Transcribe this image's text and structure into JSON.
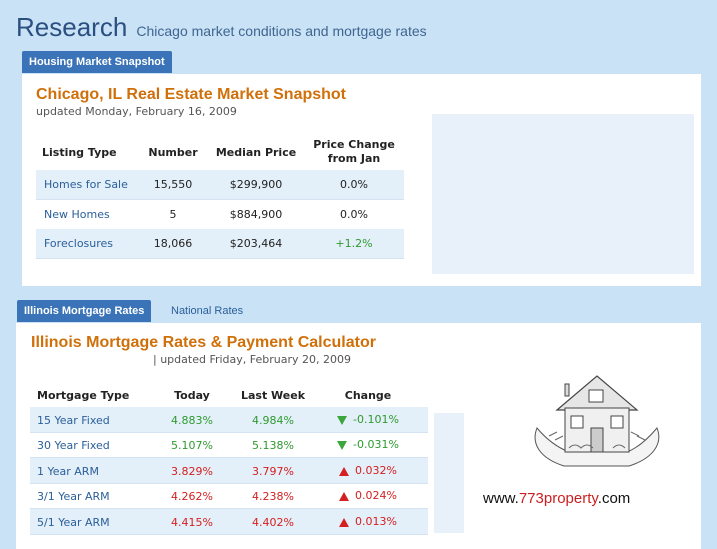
{
  "header": {
    "title": "Research",
    "subtitle": "Chicago market conditions and mortgage rates"
  },
  "snapshot": {
    "tab_label": "Housing Market Snapshot",
    "title": "Chicago, IL Real Estate Market Snapshot",
    "updated": "updated Monday, February 16, 2009",
    "columns": [
      "Listing Type",
      "Number",
      "Median Price",
      "Price Change\nfrom Jan"
    ],
    "rows": [
      {
        "type": "Homes for Sale",
        "number": "15,550",
        "median": "$299,900",
        "change": "0.0%"
      },
      {
        "type": "New Homes",
        "number": "5",
        "median": "$884,900",
        "change": "0.0%"
      },
      {
        "type": "Foreclosures",
        "number": "18,066",
        "median": "$203,464",
        "change": "+1.2%"
      }
    ]
  },
  "rates": {
    "tabs": [
      "Illinois Mortgage Rates",
      "National Rates"
    ],
    "title": "Illinois Mortgage Rates & Payment Calculator",
    "updated": "| updated Friday, February 20, 2009",
    "columns": [
      "Mortgage Type",
      "Today",
      "Last Week",
      "Change"
    ],
    "rows": [
      {
        "type": "15 Year Fixed",
        "today": "4.883%",
        "last_week": "4.984%",
        "change": "-0.101%",
        "direction": "down"
      },
      {
        "type": "30 Year Fixed",
        "today": "5.107%",
        "last_week": "5.138%",
        "change": "-0.031%",
        "direction": "down"
      },
      {
        "type": "1 Year ARM",
        "today": "3.829%",
        "last_week": "3.797%",
        "change": "0.032%",
        "direction": "up"
      },
      {
        "type": "3/1 Year ARM",
        "today": "4.262%",
        "last_week": "4.238%",
        "change": "0.024%",
        "direction": "up"
      },
      {
        "type": "5/1 Year ARM",
        "today": "4.415%",
        "last_week": "4.402%",
        "change": "0.013%",
        "direction": "up"
      }
    ]
  },
  "promo": {
    "url_prefix": "www.",
    "url_brand": "773property",
    "url_suffix": ".com",
    "brand_color": "#cc1f1f"
  },
  "colors": {
    "accent": "#3a73b8",
    "title_orange": "#d0700a",
    "positive": "#2f9a2f",
    "negative": "#d42020"
  },
  "icons": {
    "down": "triangle-down-icon",
    "up": "triangle-up-icon",
    "house": "house-in-hands-icon"
  }
}
